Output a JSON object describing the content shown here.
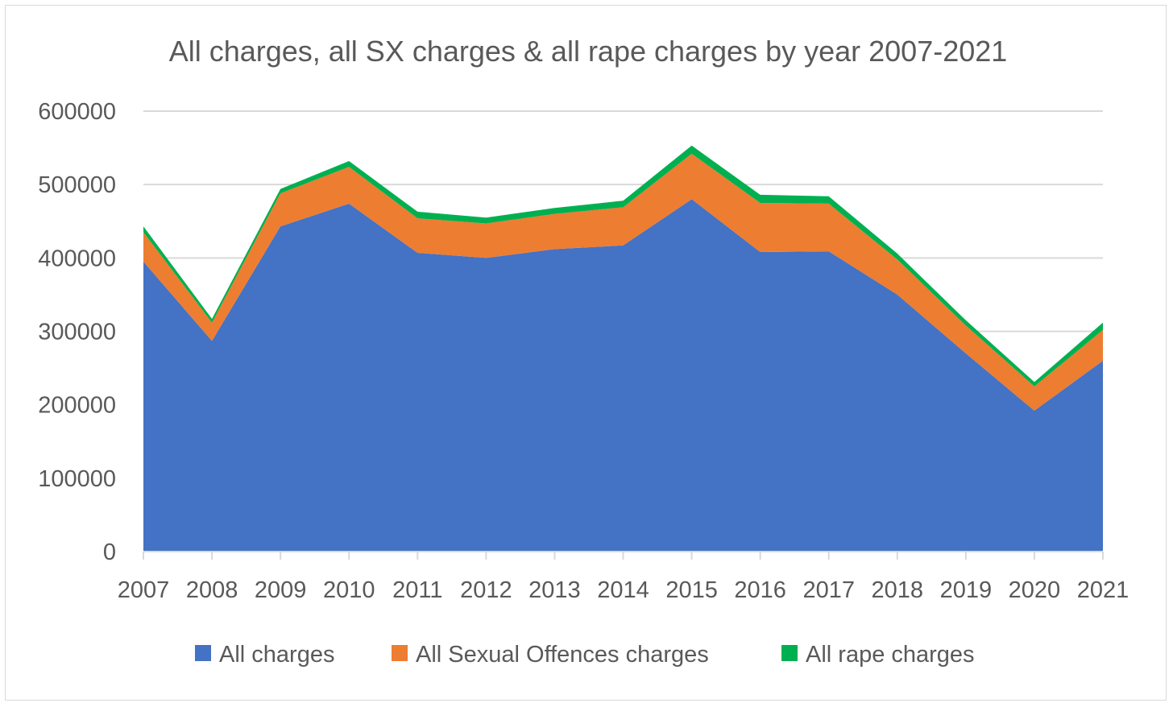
{
  "chart_data": {
    "type": "area",
    "stacked": true,
    "title": "All charges, all SX charges & all rape charges by year 2007-2021",
    "xlabel": "",
    "ylabel": "",
    "categories": [
      "2007",
      "2008",
      "2009",
      "2010",
      "2011",
      "2012",
      "2013",
      "2014",
      "2015",
      "2016",
      "2017",
      "2018",
      "2019",
      "2020",
      "2021"
    ],
    "ylim": [
      0,
      600000
    ],
    "yticks": [
      0,
      100000,
      200000,
      300000,
      400000,
      500000,
      600000
    ],
    "ytick_labels": [
      "0",
      "100000",
      "200000",
      "300000",
      "400000",
      "500000",
      "600000"
    ],
    "grid": true,
    "legend_position": "bottom",
    "series": [
      {
        "name": "All charges",
        "color": "#4472C4",
        "values": [
          395000,
          287000,
          443000,
          474000,
          407000,
          400000,
          412000,
          417000,
          480000,
          408000,
          409000,
          350000,
          270000,
          192000,
          260000
        ]
      },
      {
        "name": "All Sexual Offences charges",
        "color": "#ED7D31",
        "values": [
          40000,
          25000,
          45000,
          50000,
          47000,
          47000,
          48000,
          52000,
          62000,
          67000,
          65000,
          48000,
          38000,
          33000,
          42000
        ]
      },
      {
        "name": "All rape charges",
        "color": "#00B050",
        "values": [
          8000,
          5000,
          6000,
          8000,
          9000,
          8000,
          8000,
          9000,
          11000,
          11000,
          10000,
          8000,
          7000,
          6000,
          10000
        ]
      }
    ]
  }
}
